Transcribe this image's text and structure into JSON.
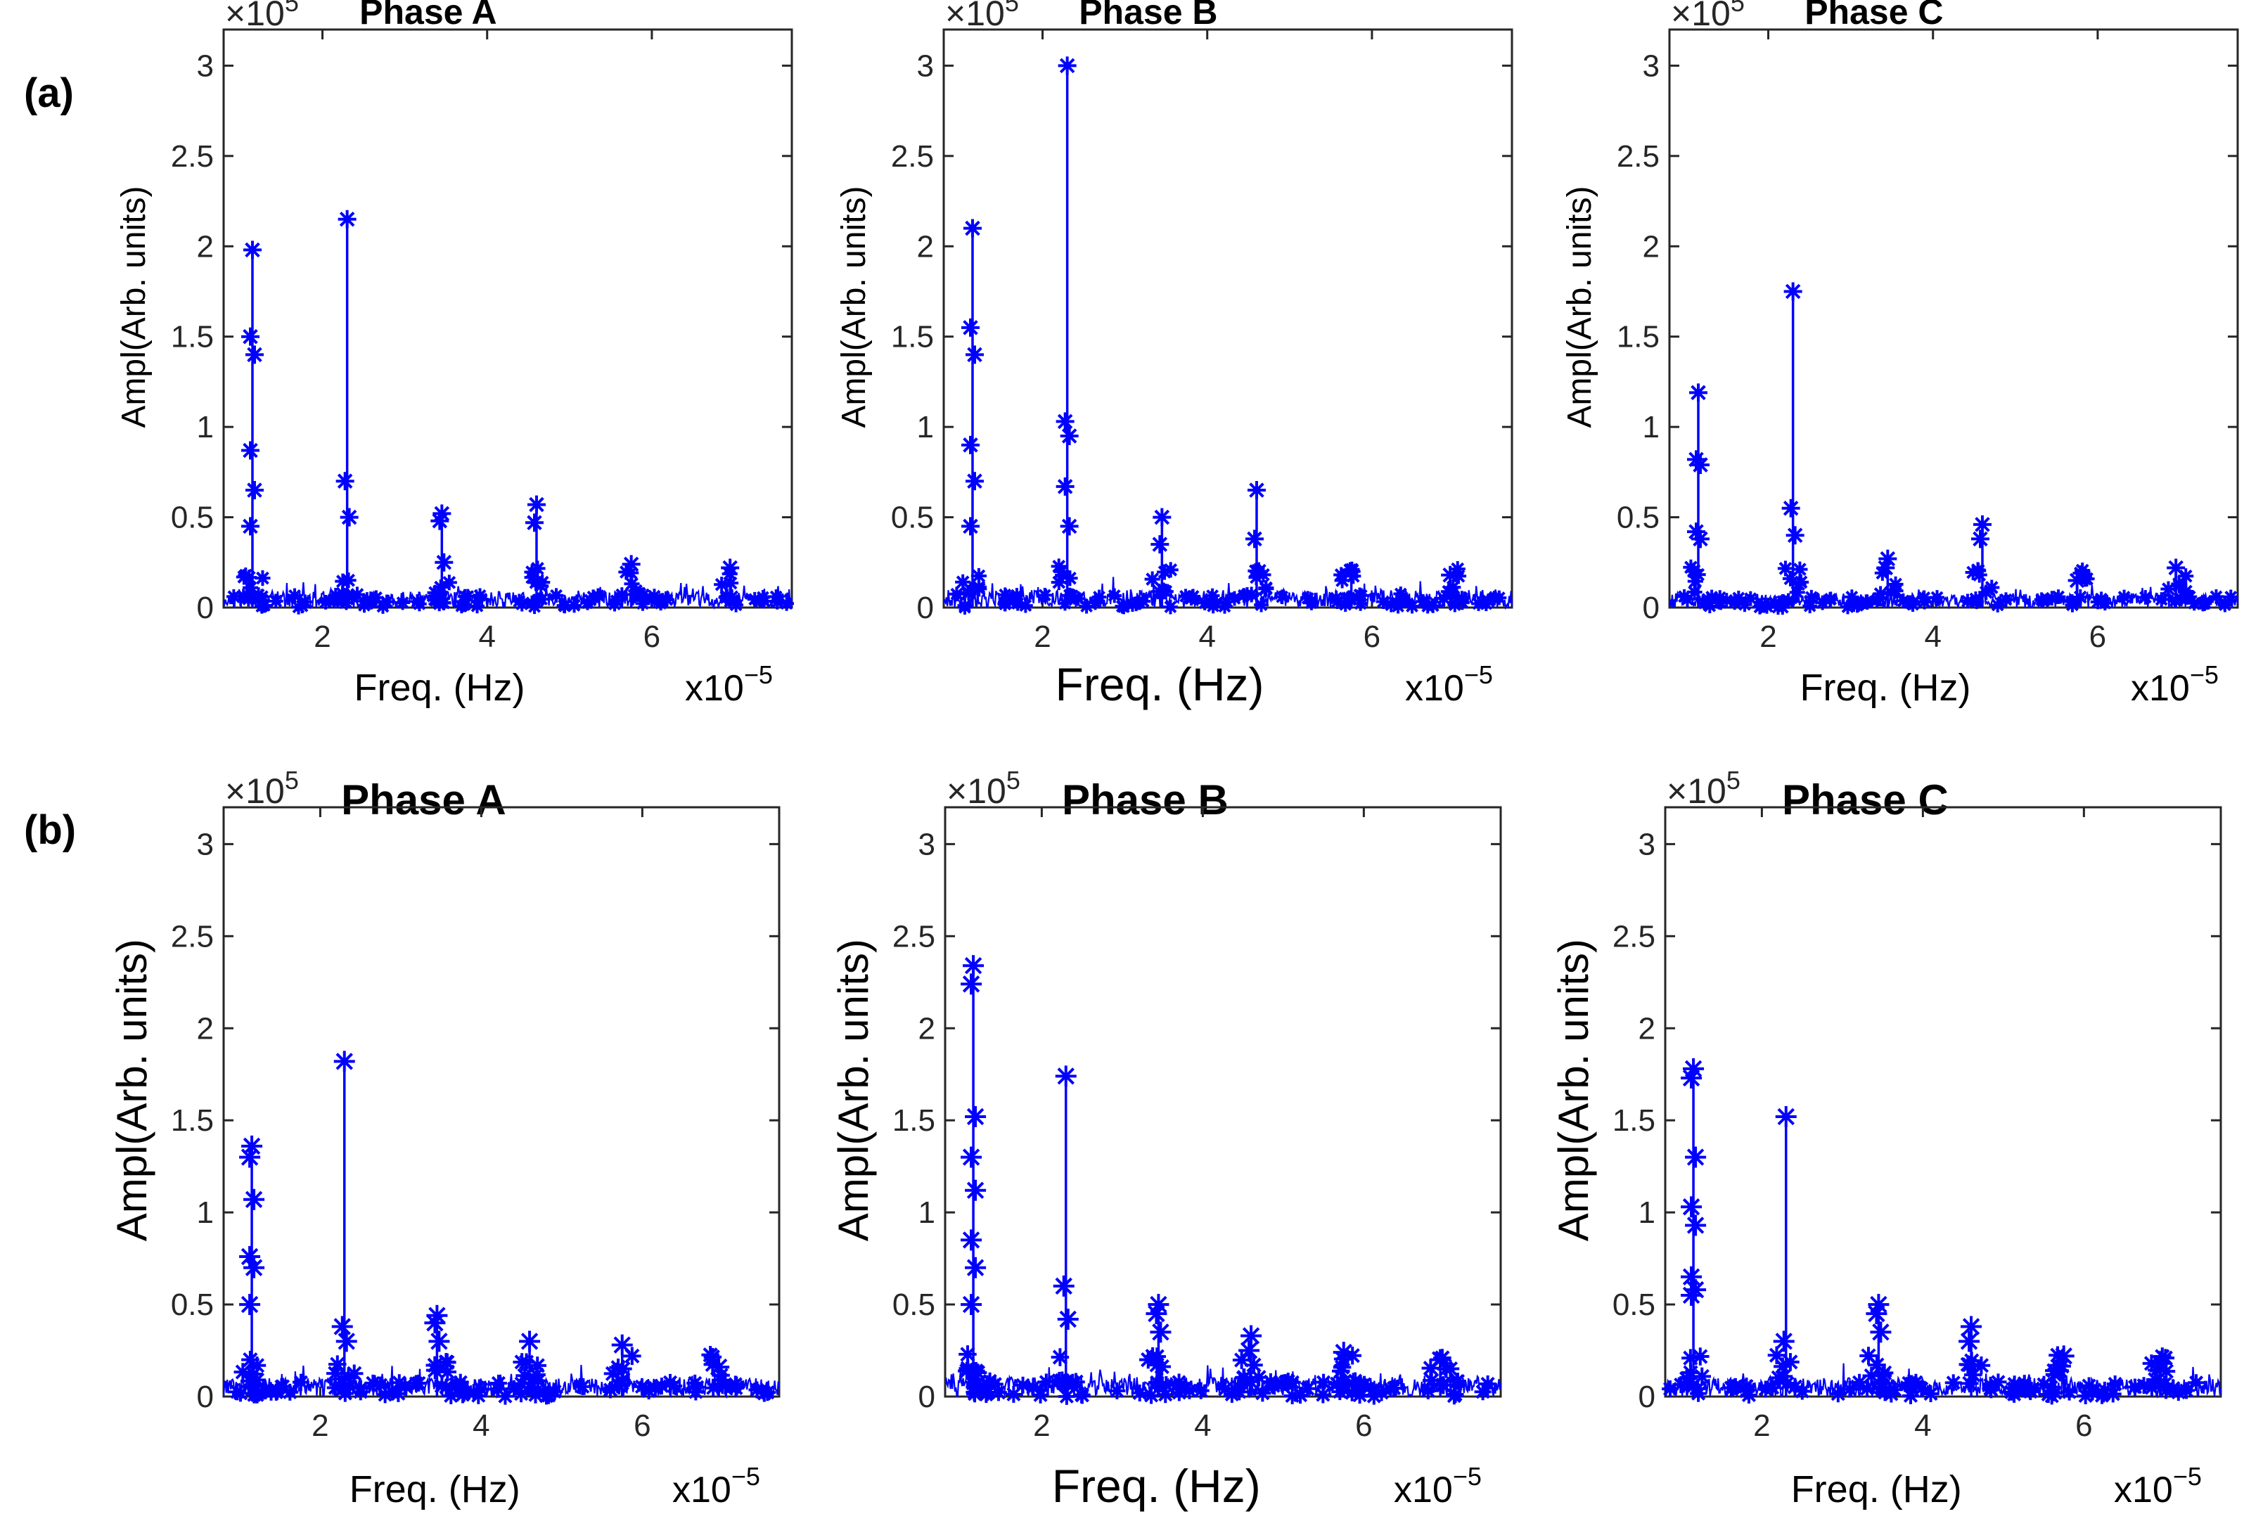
{
  "panel_labels": [
    "(a)",
    "(b)"
  ],
  "chart_data": [
    {
      "type": "line",
      "panel": "(a)",
      "title": "Phase A",
      "xlabel": "Freq. (Hz)",
      "x_multiplier": "x10",
      "x_exp": "−5",
      "ylabel": "Ampl(Arb. units)",
      "y_multiplier": "×10",
      "y_exp": "5",
      "xlim": [
        0.8,
        7.7
      ],
      "ylim": [
        0,
        3.2
      ],
      "xticks": [
        2,
        4,
        6
      ],
      "yticks": [
        "0",
        "0.5",
        "1",
        "1.5",
        "2",
        "2.5",
        "3"
      ],
      "noise_level": 0.09,
      "peaks": [
        {
          "x": 1.15,
          "values": [
            1.98,
            1.5,
            1.4,
            0.87,
            0.65,
            0.45
          ]
        },
        {
          "x": 2.3,
          "values": [
            2.15,
            0.7,
            0.5
          ]
        },
        {
          "x": 3.45,
          "values": [
            0.52,
            0.48,
            0.25
          ]
        },
        {
          "x": 4.6,
          "values": [
            0.57,
            0.47
          ]
        },
        {
          "x": 5.75,
          "values": [
            0.24
          ]
        },
        {
          "x": 6.95,
          "values": [
            0.22
          ]
        }
      ]
    },
    {
      "type": "line",
      "panel": "(a)",
      "title": "Phase B",
      "xlabel": "Freq. (Hz)",
      "x_multiplier": "x10",
      "x_exp": "−5",
      "ylabel": "Ampl(Arb. units)",
      "y_multiplier": "×10",
      "y_exp": "5",
      "xlim": [
        0.8,
        7.7
      ],
      "ylim": [
        0,
        3.2
      ],
      "xticks": [
        2,
        4,
        6
      ],
      "yticks": [
        "0",
        "0.5",
        "1",
        "1.5",
        "2",
        "2.5",
        "3"
      ],
      "noise_level": 0.1,
      "peaks": [
        {
          "x": 1.15,
          "values": [
            2.1,
            1.55,
            1.4,
            0.9,
            0.7,
            0.45
          ]
        },
        {
          "x": 2.3,
          "values": [
            3.0,
            1.03,
            0.95,
            0.67,
            0.45
          ]
        },
        {
          "x": 3.45,
          "values": [
            0.5,
            0.35
          ]
        },
        {
          "x": 4.6,
          "values": [
            0.65,
            0.38,
            0.2
          ]
        },
        {
          "x": 5.75,
          "values": [
            0.2
          ]
        },
        {
          "x": 6.95,
          "values": [
            0.18
          ]
        }
      ]
    },
    {
      "type": "line",
      "panel": "(a)",
      "title": "Phase C",
      "xlabel": "Freq. (Hz)",
      "x_multiplier": "x10",
      "x_exp": "−5",
      "ylabel": "Ampl(Arb. units)",
      "y_multiplier": "×10",
      "y_exp": "5",
      "xlim": [
        0.8,
        7.7
      ],
      "ylim": [
        0,
        3.2
      ],
      "xticks": [
        2,
        4,
        6
      ],
      "yticks": [
        "0",
        "0.5",
        "1",
        "1.5",
        "2",
        "2.5",
        "3"
      ],
      "noise_level": 0.08,
      "peaks": [
        {
          "x": 1.15,
          "values": [
            1.19,
            0.82,
            0.79,
            0.42,
            0.38
          ]
        },
        {
          "x": 2.3,
          "values": [
            1.75,
            0.55,
            0.4
          ]
        },
        {
          "x": 3.45,
          "values": [
            0.27,
            0.22
          ]
        },
        {
          "x": 4.6,
          "values": [
            0.46,
            0.38
          ]
        },
        {
          "x": 5.75,
          "values": [
            0.15
          ]
        },
        {
          "x": 6.95,
          "values": [
            0.22
          ]
        }
      ]
    },
    {
      "type": "line",
      "panel": "(b)",
      "title": "Phase A",
      "xlabel": "Freq. (Hz)",
      "x_multiplier": "x10",
      "x_exp": "−5",
      "ylabel": "Ampl(Arb. units)",
      "y_multiplier": "×10",
      "y_exp": "5",
      "xlim": [
        0.8,
        7.7
      ],
      "ylim": [
        0,
        3.2
      ],
      "xticks": [
        2,
        4,
        6
      ],
      "yticks": [
        "0",
        "0.5",
        "1",
        "1.5",
        "2",
        "2.5",
        "3"
      ],
      "noise_level": 0.1,
      "peaks": [
        {
          "x": 1.15,
          "values": [
            1.36,
            1.3,
            1.07,
            0.76,
            0.7,
            0.5
          ]
        },
        {
          "x": 2.3,
          "values": [
            1.82,
            0.38,
            0.3
          ]
        },
        {
          "x": 3.45,
          "values": [
            0.44,
            0.4,
            0.3
          ]
        },
        {
          "x": 4.6,
          "values": [
            0.3
          ]
        },
        {
          "x": 5.75,
          "values": [
            0.28
          ]
        },
        {
          "x": 6.95,
          "values": [
            0.16
          ]
        }
      ]
    },
    {
      "type": "line",
      "panel": "(b)",
      "title": "Phase B",
      "xlabel": "Freq. (Hz)",
      "x_multiplier": "x10",
      "x_exp": "−5",
      "ylabel": "Ampl(Arb. units)",
      "y_multiplier": "×10",
      "y_exp": "5",
      "xlim": [
        0.8,
        7.7
      ],
      "ylim": [
        0,
        3.2
      ],
      "xticks": [
        2,
        4,
        6
      ],
      "yticks": [
        "0",
        "0.5",
        "1",
        "1.5",
        "2",
        "2.5",
        "3"
      ],
      "noise_level": 0.11,
      "peaks": [
        {
          "x": 1.15,
          "values": [
            2.34,
            2.24,
            1.52,
            1.3,
            1.12,
            0.85,
            0.7,
            0.5
          ]
        },
        {
          "x": 2.3,
          "values": [
            1.74,
            0.6,
            0.42
          ]
        },
        {
          "x": 3.45,
          "values": [
            0.5,
            0.45,
            0.35
          ]
        },
        {
          "x": 4.6,
          "values": [
            0.33,
            0.25
          ]
        },
        {
          "x": 5.75,
          "values": [
            0.24
          ]
        },
        {
          "x": 6.95,
          "values": [
            0.2
          ]
        }
      ]
    },
    {
      "type": "line",
      "panel": "(b)",
      "title": "Phase C",
      "xlabel": "Freq. (Hz)",
      "x_multiplier": "x10",
      "x_exp": "−5",
      "ylabel": "Ampl(Arb. units)",
      "y_multiplier": "×10",
      "y_exp": "5",
      "xlim": [
        0.8,
        7.7
      ],
      "ylim": [
        0,
        3.2
      ],
      "xticks": [
        2,
        4,
        6
      ],
      "yticks": [
        "0",
        "0.5",
        "1",
        "1.5",
        "2",
        "2.5",
        "3"
      ],
      "noise_level": 0.1,
      "peaks": [
        {
          "x": 1.15,
          "values": [
            1.78,
            1.73,
            1.3,
            1.03,
            0.93,
            0.65,
            0.58,
            0.55
          ]
        },
        {
          "x": 2.3,
          "values": [
            1.52,
            0.3
          ]
        },
        {
          "x": 3.45,
          "values": [
            0.5,
            0.45,
            0.35
          ]
        },
        {
          "x": 4.6,
          "values": [
            0.38,
            0.3
          ]
        },
        {
          "x": 5.75,
          "values": [
            0.22
          ]
        },
        {
          "x": 6.95,
          "values": [
            0.18
          ]
        }
      ]
    }
  ]
}
